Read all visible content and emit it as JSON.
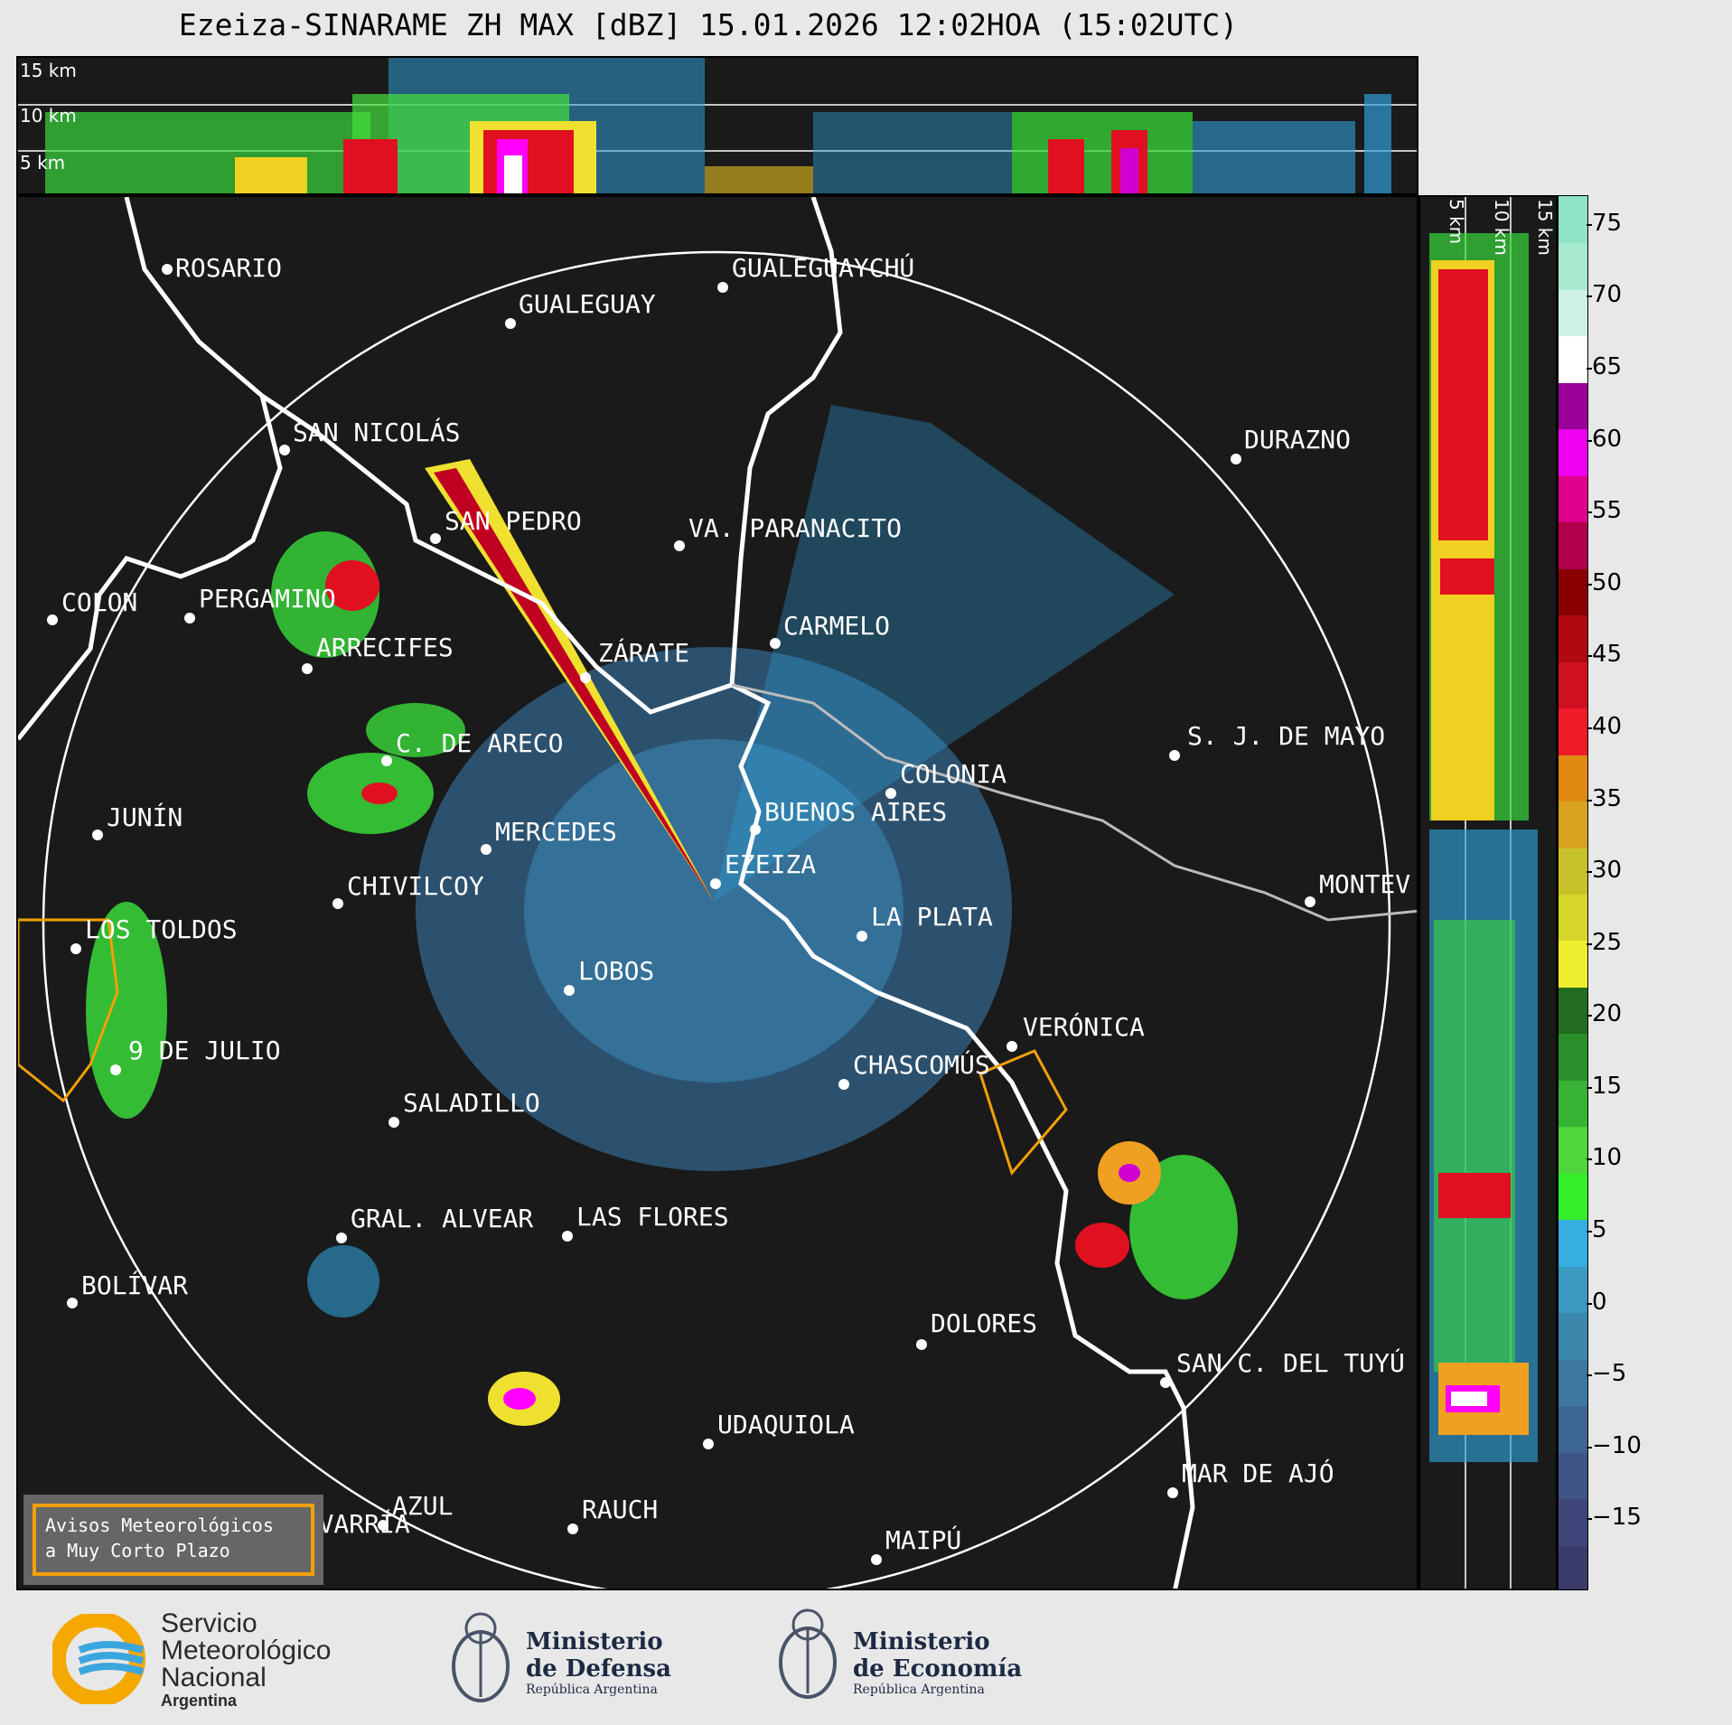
{
  "title": "Ezeiza-SINARAME ZH MAX [dBZ] 15.01.2026 12:02HOA (15:02UTC)",
  "top_panel": {
    "height_labels": [
      "15 km",
      "10 km",
      "5 km"
    ]
  },
  "side_panel": {
    "height_labels": [
      "5 km",
      "10 km",
      "15 km"
    ]
  },
  "colorbar": {
    "unit": "dBZ",
    "ticks": [
      "75",
      "70",
      "65",
      "60",
      "55",
      "50",
      "45",
      "40",
      "35",
      "30",
      "25",
      "20",
      "15",
      "10",
      "5",
      "0",
      "−5",
      "−10",
      "−15"
    ],
    "range": [
      -20,
      77
    ],
    "colors": [
      "#3b3b6b",
      "#40467a",
      "#3e5585",
      "#3d6592",
      "#3d77a0",
      "#3c88ad",
      "#3b9ac0",
      "#36aee0",
      "#35ef2a",
      "#4fd63a",
      "#36b335",
      "#2a8f2a",
      "#226d1f",
      "#eeee2e",
      "#d6d62a",
      "#c8c22a",
      "#d9a21f",
      "#e08a12",
      "#f21b2a",
      "#cf1020",
      "#b00a10",
      "#8a0000",
      "#b0004a",
      "#e0008c",
      "#f000f0",
      "#9b009b",
      "#ffffff",
      "#cff2e6",
      "#a8ebd0",
      "#8ee4c4"
    ]
  },
  "cities": [
    {
      "name": "ROSARIO"
    },
    {
      "name": "GUALEGUAYCHÚ"
    },
    {
      "name": "GUALEGUAY"
    },
    {
      "name": "SAN NICOLÁS"
    },
    {
      "name": "DURAZNO"
    },
    {
      "name": "SAN PEDRO"
    },
    {
      "name": "VA. PARANACITO"
    },
    {
      "name": "COLON"
    },
    {
      "name": "PERGAMINO"
    },
    {
      "name": "CARMELO"
    },
    {
      "name": "ARRECIFES"
    },
    {
      "name": "ZÁRATE"
    },
    {
      "name": "C. DE ARECO"
    },
    {
      "name": "S. J. DE MAYO"
    },
    {
      "name": "COLONIA"
    },
    {
      "name": "JUNÍN"
    },
    {
      "name": "BUENOS AIRES"
    },
    {
      "name": "MERCEDES"
    },
    {
      "name": "EZEIZA"
    },
    {
      "name": "MONTEV"
    },
    {
      "name": "CHIVILCOY"
    },
    {
      "name": "LA PLATA"
    },
    {
      "name": "LOS TOLDOS"
    },
    {
      "name": "LOBOS"
    },
    {
      "name": "VERÓNICA"
    },
    {
      "name": "9 DE JULIO"
    },
    {
      "name": "CHASCOMÚS"
    },
    {
      "name": "SALADILLO"
    },
    {
      "name": "GRAL. ALVEAR"
    },
    {
      "name": "LAS FLORES"
    },
    {
      "name": "BOLÍVAR"
    },
    {
      "name": "DOLORES"
    },
    {
      "name": "SAN C. DEL TUYÚ"
    },
    {
      "name": "UDAQUIOLA"
    },
    {
      "name": "MAR DE AJÓ"
    },
    {
      "name": "AZUL"
    },
    {
      "name": "RAUCH"
    },
    {
      "name": "OLAVARRÍA"
    },
    {
      "name": "MAIPÚ"
    }
  ],
  "warning_legend": {
    "line1": "Avisos Meteorológicos",
    "line2": "a Muy Corto Plazo",
    "border_color": "#f2a007"
  },
  "footer": {
    "smn_line1": "Servicio",
    "smn_line2": "Meteorológico",
    "smn_line3": "Nacional",
    "smn_line4": "Argentina",
    "defensa_line1": "Ministerio",
    "defensa_line2": "de Defensa",
    "defensa_line3": "República Argentina",
    "economia_line1": "Ministerio",
    "economia_line2": "de Economía",
    "economia_line3": "República Argentina"
  }
}
